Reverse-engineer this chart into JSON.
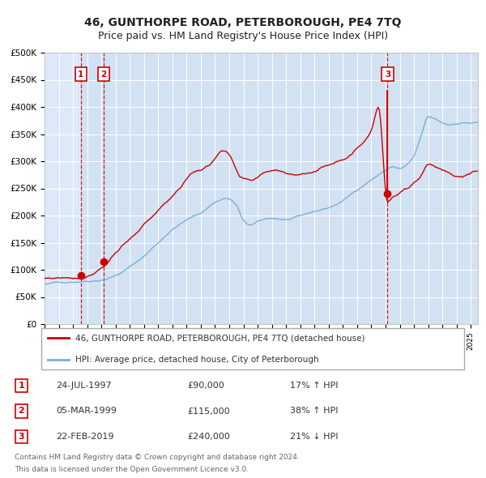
{
  "title": "46, GUNTHORPE ROAD, PETERBOROUGH, PE4 7TQ",
  "subtitle": "Price paid vs. HM Land Registry's House Price Index (HPI)",
  "ylim": [
    0,
    500000
  ],
  "yticks": [
    0,
    50000,
    100000,
    150000,
    200000,
    250000,
    300000,
    350000,
    400000,
    450000,
    500000
  ],
  "ytick_labels": [
    "£0",
    "£50K",
    "£100K",
    "£150K",
    "£200K",
    "£250K",
    "£300K",
    "£350K",
    "£400K",
    "£450K",
    "£500K"
  ],
  "xlim_start": 1995.0,
  "xlim_end": 2025.5,
  "background_color": "#dce9f8",
  "grid_color": "#ffffff",
  "fig_background": "#ffffff",
  "red_line_color": "#cc0000",
  "blue_line_color": "#7bafd4",
  "sale1_date": 1997.56,
  "sale1_price": 90000,
  "sale2_date": 1999.17,
  "sale2_price": 115000,
  "sale3_date": 2019.14,
  "sale3_price": 240000,
  "legend_line1": "46, GUNTHORPE ROAD, PETERBOROUGH, PE4 7TQ (detached house)",
  "legend_line2": "HPI: Average price, detached house, City of Peterborough",
  "table_row1": [
    "1",
    "24-JUL-1997",
    "£90,000",
    "17% ↑ HPI"
  ],
  "table_row2": [
    "2",
    "05-MAR-1999",
    "£115,000",
    "38% ↑ HPI"
  ],
  "table_row3": [
    "3",
    "22-FEB-2019",
    "£240,000",
    "21% ↓ HPI"
  ],
  "footer1": "Contains HM Land Registry data © Crown copyright and database right 2024.",
  "footer2": "This data is licensed under the Open Government Licence v3.0.",
  "hpi_keypoints_t": [
    1995.0,
    1996.0,
    1997.0,
    1998.0,
    1999.0,
    2000.0,
    2001.0,
    2002.0,
    2003.0,
    2004.0,
    2005.0,
    2006.0,
    2007.0,
    2007.8,
    2008.5,
    2009.0,
    2009.5,
    2010.0,
    2011.0,
    2012.0,
    2013.0,
    2014.0,
    2015.0,
    2016.0,
    2017.0,
    2018.0,
    2019.0,
    2019.5,
    2020.0,
    2020.5,
    2021.0,
    2021.5,
    2022.0,
    2022.5,
    2023.0,
    2023.5,
    2024.0,
    2024.5,
    2025.0
  ],
  "hpi_keypoints_v": [
    73000,
    76000,
    79000,
    82000,
    86000,
    95000,
    110000,
    130000,
    155000,
    180000,
    197000,
    210000,
    230000,
    238000,
    225000,
    195000,
    187000,
    192000,
    198000,
    196000,
    200000,
    208000,
    215000,
    228000,
    248000,
    268000,
    285000,
    292000,
    288000,
    295000,
    310000,
    345000,
    380000,
    375000,
    368000,
    365000,
    368000,
    370000,
    370000
  ],
  "prop_keypoints_t": [
    1995.0,
    1996.5,
    1997.56,
    1999.17,
    2000.0,
    2001.5,
    2002.5,
    2003.5,
    2004.5,
    2005.5,
    2006.5,
    2007.5,
    2008.0,
    2008.8,
    2009.5,
    2010.5,
    2011.5,
    2012.5,
    2013.5,
    2014.5,
    2015.5,
    2016.5,
    2017.5,
    2018.0,
    2018.5,
    2019.14,
    2019.5,
    2020.0,
    2020.5,
    2021.0,
    2021.5,
    2022.0,
    2022.5,
    2023.0,
    2023.5,
    2024.0,
    2024.5,
    2025.0
  ],
  "prop_keypoints_v": [
    84000,
    87000,
    90000,
    115000,
    140000,
    172000,
    200000,
    225000,
    255000,
    285000,
    295000,
    325000,
    315000,
    270000,
    262000,
    278000,
    285000,
    278000,
    282000,
    292000,
    306000,
    322000,
    348000,
    370000,
    415000,
    240000,
    248000,
    255000,
    262000,
    272000,
    288000,
    310000,
    305000,
    300000,
    295000,
    290000,
    292000,
    295000
  ]
}
